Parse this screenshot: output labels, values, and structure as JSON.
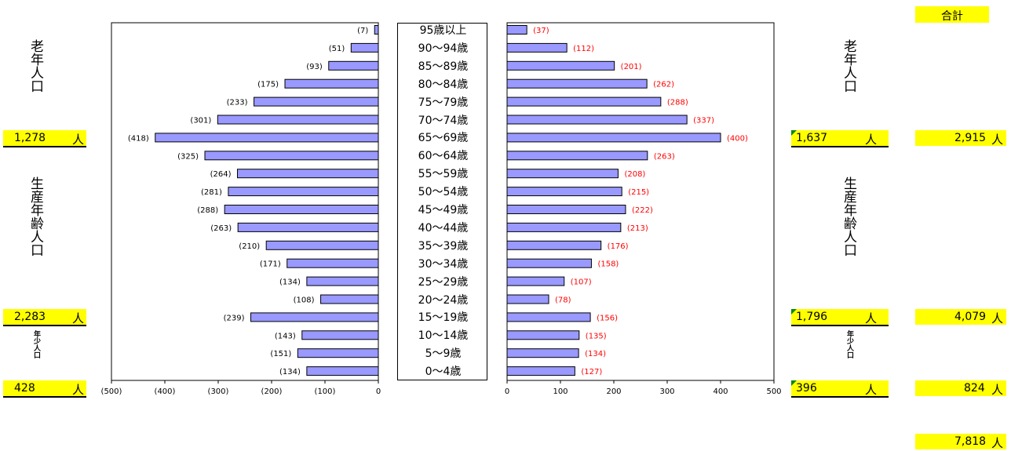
{
  "chart_data": [
    {
      "type": "bar",
      "orientation": "horizontal",
      "direction": "left",
      "categories": [
        "95歳以上",
        "90～94歳",
        "85～89歳",
        "80～84歳",
        "75～79歳",
        "70～74歳",
        "65～69歳",
        "60～64歳",
        "55～59歳",
        "50～54歳",
        "45～49歳",
        "40～44歳",
        "35～39歳",
        "30～34歳",
        "25～29歳",
        "20～24歳",
        "15～19歳",
        "10～14歳",
        "5～9歳",
        "0～4歳"
      ],
      "values": [
        7,
        51,
        93,
        175,
        233,
        301,
        418,
        325,
        264,
        281,
        288,
        263,
        210,
        171,
        134,
        108,
        239,
        143,
        151,
        134
      ],
      "data_labels": [
        "(7)",
        "(51)",
        "(93)",
        "(175)",
        "(233)",
        "(301)",
        "(418)",
        "(325)",
        "(264)",
        "(281)",
        "(288)",
        "(263)",
        "(210)",
        "(171)",
        "(134)",
        "(108)",
        "(239)",
        "(143)",
        "(151)",
        "(134)"
      ],
      "xlim": [
        0,
        500
      ],
      "tick_labels": [
        "(500)",
        "(400)",
        "(300)",
        "(200)",
        "(100)",
        "0"
      ],
      "bar_color": "#9999ff"
    },
    {
      "type": "bar",
      "orientation": "horizontal",
      "direction": "right",
      "categories": [
        "95歳以上",
        "90～94歳",
        "85～89歳",
        "80～84歳",
        "75～79歳",
        "70～74歳",
        "65～69歳",
        "60～64歳",
        "55～59歳",
        "50～54歳",
        "45～49歳",
        "40～44歳",
        "35～39歳",
        "30～34歳",
        "25～29歳",
        "20～24歳",
        "15～19歳",
        "10～14歳",
        "5～9歳",
        "0～4歳"
      ],
      "values": [
        37,
        112,
        201,
        262,
        288,
        337,
        400,
        263,
        208,
        215,
        222,
        213,
        176,
        158,
        107,
        78,
        156,
        135,
        134,
        127
      ],
      "data_labels": [
        "(37)",
        "(112)",
        "(201)",
        "(262)",
        "(288)",
        "(337)",
        "(400)",
        "(263)",
        "(208)",
        "(215)",
        "(222)",
        "(213)",
        "(176)",
        "(158)",
        "(107)",
        "(78)",
        "(156)",
        "(135)",
        "(134)",
        "(127)"
      ],
      "xlim": [
        0,
        500
      ],
      "tick_labels": [
        "0",
        "100",
        "200",
        "300",
        "400",
        "500"
      ],
      "bar_color": "#9999ff",
      "label_color": "#ff0000"
    }
  ],
  "total_header": "合計",
  "unit": "人",
  "left_labels": {
    "elderly": "老年人口",
    "working": "生産年齢人口",
    "young": "年少人口"
  },
  "right_labels": {
    "elderly": "老年人口",
    "working": "生産年齢人口",
    "young": "年少人口"
  },
  "left_values": {
    "elderly": "1,278",
    "working": "2,283",
    "young": "428"
  },
  "right_values": {
    "elderly": "1,637",
    "working": "1,796",
    "young": "396"
  },
  "totals": {
    "elderly": "2,915",
    "working": "4,079",
    "young": "824",
    "grand": "7,818"
  },
  "colors": {
    "highlight": "#ffff00",
    "bar": "#9999ff",
    "right_label": "#ff0000",
    "marker": "#0a8a0a"
  }
}
